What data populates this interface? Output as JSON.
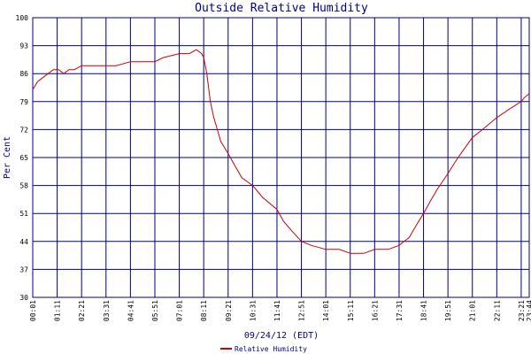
{
  "chart_data": {
    "type": "line",
    "title": "Outside Relative Humidity",
    "xlabel": "09/24/12 (EDT)",
    "ylabel": "Per Cent",
    "ylim": [
      30,
      100
    ],
    "yticks": [
      "30",
      "37",
      "44",
      "51",
      "58",
      "65",
      "72",
      "79",
      "86",
      "93",
      "100"
    ],
    "xticks": [
      "00:01",
      "01:11",
      "02:21",
      "03:31",
      "04:41",
      "05:51",
      "07:01",
      "08:11",
      "09:21",
      "10:31",
      "11:41",
      "12:51",
      "14:01",
      "15:11",
      "16:21",
      "17:31",
      "18:41",
      "19:51",
      "21:01",
      "22:11",
      "23:21",
      "23:44"
    ],
    "grid": true,
    "colors": {
      "grid": "#000080",
      "line": "#cc0000",
      "text": "#000080"
    },
    "legend_position": "bottom",
    "series": [
      {
        "name": "Relative Humidity",
        "x": [
          "00:01",
          "00:15",
          "00:30",
          "00:45",
          "01:00",
          "01:15",
          "01:30",
          "01:45",
          "02:00",
          "02:21",
          "02:50",
          "03:31",
          "04:00",
          "04:41",
          "05:51",
          "06:15",
          "07:01",
          "07:30",
          "07:50",
          "08:05",
          "08:11",
          "08:20",
          "08:30",
          "08:40",
          "08:50",
          "09:00",
          "09:21",
          "09:40",
          "10:00",
          "10:31",
          "11:00",
          "11:41",
          "12:00",
          "12:20",
          "12:51",
          "13:20",
          "14:01",
          "14:40",
          "15:11",
          "15:50",
          "16:21",
          "17:00",
          "17:31",
          "18:00",
          "18:20",
          "18:41",
          "19:00",
          "19:20",
          "19:51",
          "20:20",
          "21:01",
          "21:30",
          "22:11",
          "22:45",
          "23:21",
          "23:30",
          "23:44"
        ],
        "values": [
          82,
          84,
          85,
          86,
          87,
          87,
          86,
          87,
          87,
          88,
          88,
          88,
          88,
          89,
          89,
          90,
          91,
          91,
          92,
          91,
          90,
          86,
          79,
          75,
          72,
          69,
          66,
          63,
          60,
          58,
          55,
          52,
          49,
          47,
          44,
          43,
          42,
          42,
          41,
          41,
          42,
          42,
          43,
          45,
          48,
          51,
          54,
          57,
          61,
          65,
          70,
          72,
          75,
          77,
          79,
          80,
          81
        ]
      }
    ]
  }
}
